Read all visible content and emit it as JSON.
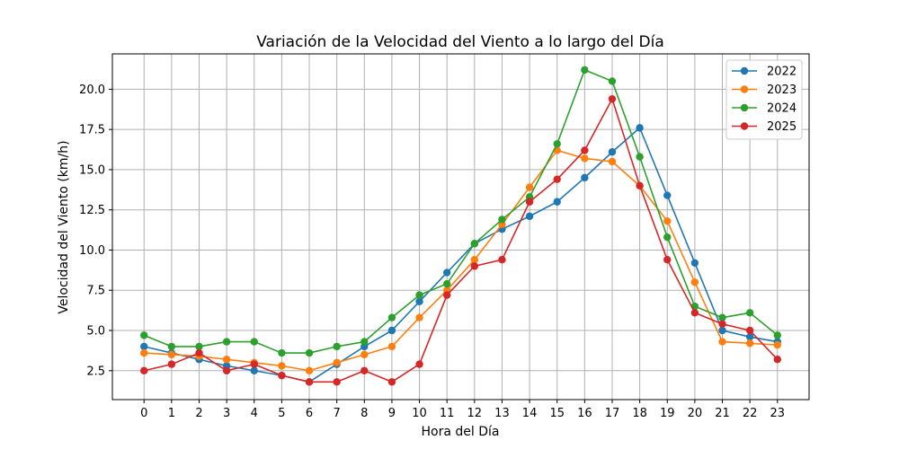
{
  "chart_data": {
    "type": "line",
    "title": "Variación de la Velocidad del Viento a lo largo del Día",
    "xlabel": "Hora del Día",
    "ylabel": "Velocidad del Viento (km/h)",
    "x": [
      0,
      1,
      2,
      3,
      4,
      5,
      6,
      7,
      8,
      9,
      10,
      11,
      12,
      13,
      14,
      15,
      16,
      17,
      18,
      19,
      20,
      21,
      22,
      23
    ],
    "x_tick_labels": [
      "0",
      "1",
      "2",
      "3",
      "4",
      "5",
      "6",
      "7",
      "8",
      "9",
      "10",
      "11",
      "12",
      "13",
      "14",
      "15",
      "16",
      "17",
      "18",
      "19",
      "20",
      "21",
      "22",
      "23"
    ],
    "xlim": [
      -1.15,
      24.15
    ],
    "ylim": [
      0.7,
      22.2
    ],
    "y_ticks": [
      2.5,
      5.0,
      7.5,
      10.0,
      12.5,
      15.0,
      17.5,
      20.0
    ],
    "y_tick_labels": [
      "2.5",
      "5.0",
      "7.5",
      "10.0",
      "12.5",
      "15.0",
      "17.5",
      "20.0"
    ],
    "grid": true,
    "legend_position": "top-right",
    "series": [
      {
        "name": "2022",
        "color": "#1f77b4",
        "values": [
          4.0,
          3.6,
          3.2,
          2.8,
          2.5,
          2.2,
          1.8,
          2.9,
          4.0,
          5.0,
          6.8,
          8.6,
          10.4,
          11.3,
          12.1,
          13.0,
          14.5,
          16.1,
          17.6,
          13.4,
          9.2,
          5.0,
          4.6,
          4.3
        ]
      },
      {
        "name": "2023",
        "color": "#ff7f0e",
        "values": [
          3.6,
          3.5,
          3.4,
          3.2,
          3.0,
          2.8,
          2.5,
          3.0,
          3.5,
          4.0,
          5.8,
          7.5,
          9.4,
          11.6,
          13.9,
          16.2,
          15.7,
          15.5,
          14.0,
          11.8,
          8.0,
          4.3,
          4.2,
          4.1
        ]
      },
      {
        "name": "2024",
        "color": "#2ca02c",
        "values": [
          4.7,
          4.0,
          4.0,
          4.3,
          4.3,
          3.6,
          3.6,
          4.0,
          4.3,
          5.8,
          7.2,
          7.9,
          10.4,
          11.9,
          13.3,
          16.6,
          21.2,
          20.5,
          15.8,
          10.8,
          6.5,
          5.8,
          6.1,
          4.7
        ]
      },
      {
        "name": "2025",
        "color": "#d62728",
        "values": [
          2.5,
          2.9,
          3.6,
          2.5,
          2.9,
          2.2,
          1.8,
          1.8,
          2.5,
          1.8,
          2.9,
          7.2,
          9.0,
          9.4,
          13.0,
          14.4,
          16.2,
          19.4,
          14.0,
          9.4,
          6.1,
          5.4,
          5.0,
          3.2
        ]
      }
    ]
  }
}
